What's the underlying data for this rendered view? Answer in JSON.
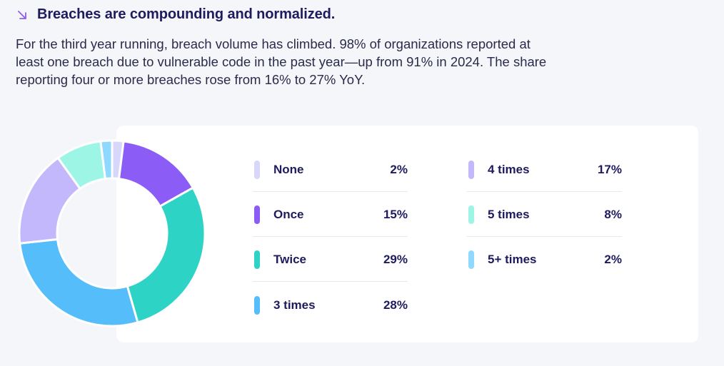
{
  "header": {
    "title": "Breaches are compounding and normalized.",
    "icon": "arrow-down-right-icon",
    "description": "For the third year running, breach volume has climbed. 98% of organizations reported at least one breach due to vulnerable code in the past year—up from 91% in 2024. The share reporting four or more breaches rose from 16% to 27% YoY."
  },
  "colors": {
    "accent": "#8b5cf6",
    "text": "#1e1b5e"
  },
  "chart_data": {
    "type": "pie",
    "variant": "donut",
    "categories": [
      "None",
      "Once",
      "Twice",
      "3 times",
      "4 times",
      "5 times",
      "5+ times"
    ],
    "values": [
      2,
      15,
      29,
      28,
      17,
      8,
      2
    ],
    "labels": [
      "2%",
      "15%",
      "29%",
      "28%",
      "17%",
      "8%",
      "2%"
    ],
    "colors": [
      "#d9d6fb",
      "#8b5cf6",
      "#2dd4c6",
      "#56bdfb",
      "#c4b8fd",
      "#9df5e6",
      "#8fd8ff"
    ],
    "title": ""
  }
}
